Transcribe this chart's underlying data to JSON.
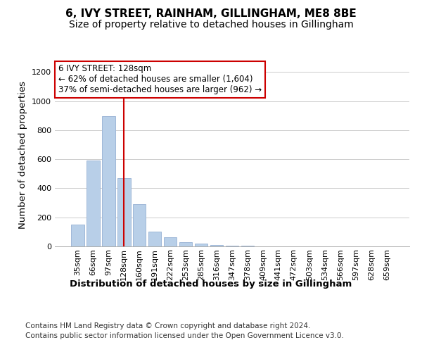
{
  "title": "6, IVY STREET, RAINHAM, GILLINGHAM, ME8 8BE",
  "subtitle": "Size of property relative to detached houses in Gillingham",
  "xlabel": "Distribution of detached houses by size in Gillingham",
  "ylabel": "Number of detached properties",
  "categories": [
    "35sqm",
    "66sqm",
    "97sqm",
    "128sqm",
    "160sqm",
    "191sqm",
    "222sqm",
    "253sqm",
    "285sqm",
    "316sqm",
    "347sqm",
    "378sqm",
    "409sqm",
    "441sqm",
    "472sqm",
    "503sqm",
    "534sqm",
    "566sqm",
    "597sqm",
    "628sqm",
    "659sqm"
  ],
  "values": [
    150,
    590,
    895,
    470,
    290,
    100,
    65,
    30,
    20,
    10,
    5,
    3,
    2,
    2,
    1,
    1,
    1,
    1,
    0,
    0,
    0
  ],
  "bar_color": "#b8cfe8",
  "bar_edgecolor": "#a0b8d8",
  "redline_index": 3,
  "redline_color": "#cc0000",
  "annotation_text": "6 IVY STREET: 128sqm\n← 62% of detached houses are smaller (1,604)\n37% of semi-detached houses are larger (962) →",
  "annotation_box_edgecolor": "#cc0000",
  "annotation_box_facecolor": "#ffffff",
  "ylim": [
    0,
    1260
  ],
  "yticks": [
    0,
    200,
    400,
    600,
    800,
    1000,
    1200
  ],
  "footer_line1": "Contains HM Land Registry data © Crown copyright and database right 2024.",
  "footer_line2": "Contains public sector information licensed under the Open Government Licence v3.0.",
  "background_color": "#ffffff",
  "title_fontsize": 11,
  "subtitle_fontsize": 10,
  "axis_label_fontsize": 9.5,
  "tick_fontsize": 8,
  "annotation_fontsize": 8.5,
  "footer_fontsize": 7.5
}
